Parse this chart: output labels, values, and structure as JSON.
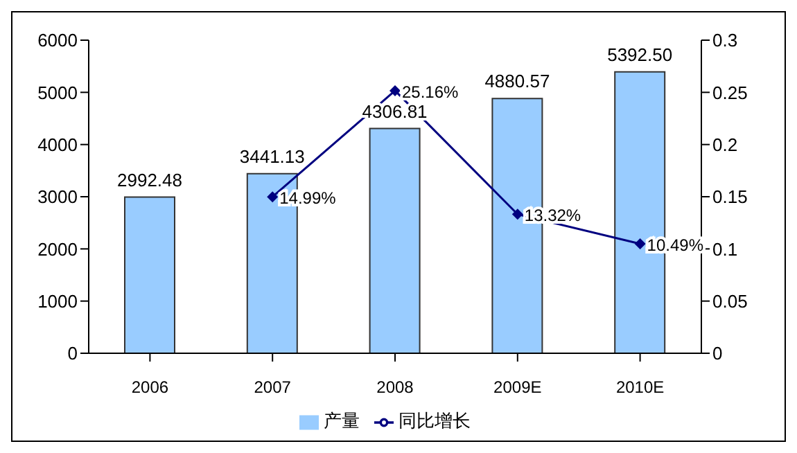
{
  "chart_data": {
    "type": "bar",
    "categories": [
      "2006",
      "2007",
      "2008",
      "2009E",
      "2010E"
    ],
    "series": [
      {
        "name": "产量",
        "color": "#99ccff",
        "values": [
          2992.48,
          3441.13,
          4306.81,
          4880.57,
          5392.5
        ],
        "value_labels": [
          "2992.48",
          "3441.13",
          "4306.81",
          "4880.57",
          "5392.50"
        ]
      },
      {
        "name": "同比增长",
        "type": "line",
        "axis": "y2",
        "color": "#000080",
        "values": [
          null,
          0.1499,
          0.2516,
          0.1332,
          0.1049
        ],
        "value_labels": [
          null,
          "14.99%",
          "25.16%",
          "13.32%",
          "10.49%"
        ]
      }
    ],
    "ylim": [
      0,
      6000
    ],
    "yticks": [
      0,
      1000,
      2000,
      3000,
      4000,
      5000,
      6000
    ],
    "y2lim": [
      0,
      0.3
    ],
    "y2ticks": [
      0,
      0.05,
      0.1,
      0.15,
      0.2,
      0.25,
      0.3
    ],
    "marker": "diamond",
    "legend": "bottom",
    "grid": false
  }
}
